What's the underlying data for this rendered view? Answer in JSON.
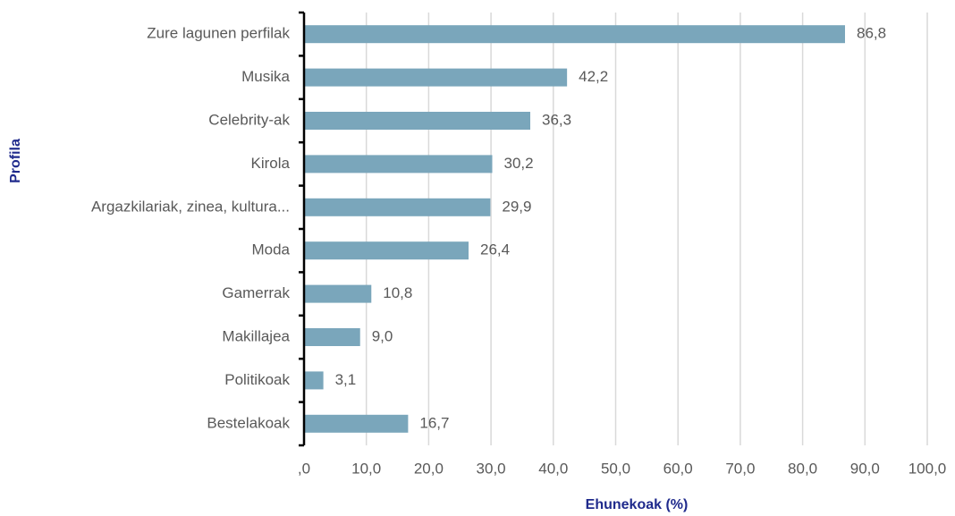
{
  "chart_data": {
    "type": "bar",
    "orientation": "horizontal",
    "x_label": "Ehunekoak (%)",
    "y_label": "Profila",
    "categories": [
      "Zure lagunen perfilak",
      "Musika",
      "Celebrity-ak",
      "Kirola",
      "Argazkilariak, zinea, kultura...",
      "Moda",
      "Gamerrak",
      "Makillajea",
      "Politikoak",
      "Bestelakoak"
    ],
    "values": [
      86.8,
      42.2,
      36.3,
      30.2,
      29.9,
      26.4,
      10.8,
      9.0,
      3.1,
      16.7
    ],
    "value_labels": [
      "86,8",
      "42,2",
      "36,3",
      "30,2",
      "29,9",
      "26,4",
      "10,8",
      "9,0",
      "3,1",
      "16,7"
    ],
    "color": "#7aa6bb",
    "xlim": [
      0,
      100
    ],
    "xticks": [
      {
        "value": 0,
        "label": ",0"
      },
      {
        "value": 10,
        "label": "10,0"
      },
      {
        "value": 20,
        "label": "20,0"
      },
      {
        "value": 30,
        "label": "30,0"
      },
      {
        "value": 40,
        "label": "40,0"
      },
      {
        "value": 50,
        "label": "50,0"
      },
      {
        "value": 60,
        "label": "60,0"
      },
      {
        "value": 70,
        "label": "70,0"
      },
      {
        "value": 80,
        "label": "80,0"
      },
      {
        "value": 90,
        "label": "90,0"
      },
      {
        "value": 100,
        "label": "100,0"
      }
    ],
    "grid": true
  }
}
